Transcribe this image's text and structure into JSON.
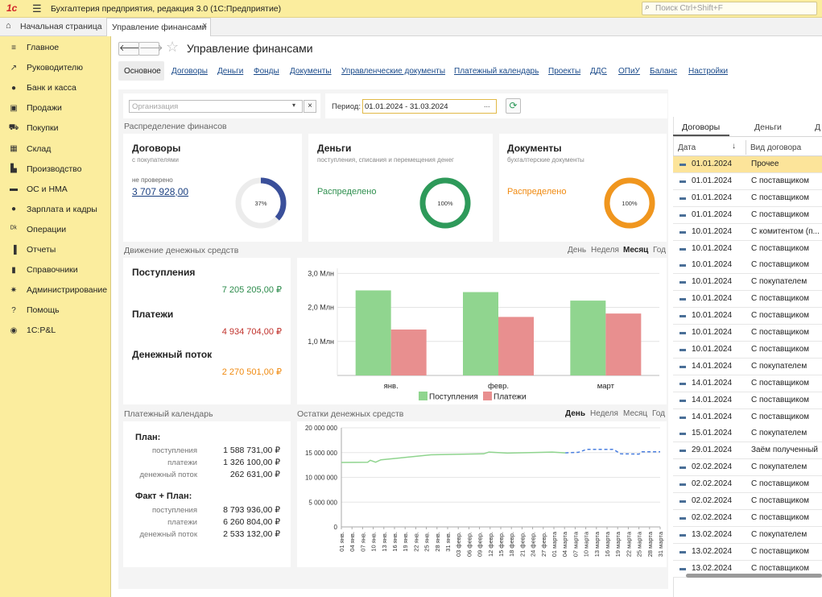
{
  "app": {
    "title": "Бухгалтерия предприятия, редакция 3.0  (1С:Предприятие)",
    "search_placeholder": "Поиск Ctrl+Shift+F"
  },
  "tabs": {
    "home": "Начальная страница",
    "active": "Управление финансами"
  },
  "sidebar": {
    "items": [
      {
        "label": "Главное",
        "icon": "menu-icon"
      },
      {
        "label": "Руководителю",
        "icon": "trend-icon"
      },
      {
        "label": "Банк и касса",
        "icon": "coin-icon"
      },
      {
        "label": "Продажи",
        "icon": "bag-icon"
      },
      {
        "label": "Покупки",
        "icon": "cart-icon"
      },
      {
        "label": "Склад",
        "icon": "warehouse-icon"
      },
      {
        "label": "Производство",
        "icon": "factory-icon"
      },
      {
        "label": "ОС и НМА",
        "icon": "truck-icon"
      },
      {
        "label": "Зарплата и кадры",
        "icon": "person-icon"
      },
      {
        "label": "Операции",
        "icon": "dt-kt-icon"
      },
      {
        "label": "Отчеты",
        "icon": "bar-report-icon"
      },
      {
        "label": "Справочники",
        "icon": "book-icon"
      },
      {
        "label": "Администрирование",
        "icon": "gear-icon"
      },
      {
        "label": "Помощь",
        "icon": "question-icon"
      },
      {
        "label": "1С:P&L",
        "icon": "pl-icon"
      }
    ]
  },
  "page": {
    "title": "Управление финансами"
  },
  "nav": {
    "items": [
      "Основное",
      "Договоры",
      "Деньги",
      "Фонды",
      "Документы",
      "Управленческие документы",
      "Платежный календарь",
      "Проекты",
      "ДДС",
      "ОПиУ",
      "Баланс",
      "Настройки"
    ]
  },
  "filter": {
    "org_placeholder": "Организация",
    "period_label": "Период:",
    "period_value": "01.01.2024 - 31.03.2024",
    "ellipsis": "...",
    "clear": "×"
  },
  "distribution": {
    "title": "Распределение финансов",
    "contracts": {
      "title": "Договоры",
      "subtitle": "с покупателями",
      "status": "не проверено",
      "amount": "3 707 928,00",
      "percent_label": "37%",
      "percent": 37,
      "color": "#3a4f9a"
    },
    "money": {
      "title": "Деньги",
      "subtitle": "поступления, списания и перемещения денег",
      "status": "Распределено",
      "percent_label": "100%",
      "percent": 100,
      "color": "#2e9a5a"
    },
    "docs": {
      "title": "Документы",
      "subtitle": "бухгалтерские документы",
      "status": "Распределено",
      "percent_label": "100%",
      "percent": 100,
      "color": "#f0961e"
    }
  },
  "cashflow": {
    "title": "Движение денежных средств",
    "periods": [
      "День",
      "Неделя",
      "Месяц",
      "Год"
    ],
    "receipts_label": "Поступления",
    "receipts_value": "7 205 205,00 ₽",
    "payments_label": "Платежи",
    "payments_value": "4 934 704,00 ₽",
    "flow_label": "Денежный поток",
    "flow_value": "2 270 501,00 ₽"
  },
  "calendar": {
    "title": "Платежный календарь",
    "plan": {
      "title": "План:",
      "rows": [
        [
          "поступления",
          "1 588 731,00 ₽"
        ],
        [
          "платежи",
          "1 326 100,00 ₽"
        ],
        [
          "денежный поток",
          "262 631,00 ₽"
        ]
      ]
    },
    "fact": {
      "title": "Факт + План:",
      "rows": [
        [
          "поступления",
          "8 793 936,00 ₽"
        ],
        [
          "платежи",
          "6 260 804,00 ₽"
        ],
        [
          "денежный поток",
          "2 533 132,00 ₽"
        ]
      ]
    }
  },
  "balances": {
    "title": "Остатки денежных средств",
    "periods": [
      "День",
      "Неделя",
      "Месяц",
      "Год"
    ]
  },
  "chart_data": [
    {
      "type": "bar",
      "categories": [
        "янв.",
        "февр.",
        "март"
      ],
      "series": [
        {
          "name": "Поступления",
          "values": [
            2.5,
            2.45,
            2.2
          ],
          "color": "#90d58f"
        },
        {
          "name": "Платежи",
          "values": [
            1.35,
            1.72,
            1.82
          ],
          "color": "#e88f8f"
        }
      ],
      "yticks": [
        "1,0 Млн",
        "2,0 Млн",
        "3,0 Млн"
      ],
      "ylim": [
        0,
        3.15
      ],
      "legend": "bottom"
    },
    {
      "type": "line",
      "yticks": [
        "0",
        "5 000 000",
        "10 000 000",
        "15 000 000",
        "20 000 000"
      ],
      "ylim": [
        0,
        20000000
      ],
      "xticks": [
        "01 янв.",
        "04 янв.",
        "07 янв.",
        "10 янв.",
        "13 янв.",
        "16 янв.",
        "19 янв.",
        "22 янв.",
        "25 янв.",
        "28 янв.",
        "31 янв.",
        "03 февр.",
        "06 февр.",
        "09 февр.",
        "12 февр.",
        "15 февр.",
        "18 февр.",
        "21 февр.",
        "24 февр.",
        "27 февр.",
        "01 марта",
        "04 марта",
        "07 марта",
        "10 марта",
        "13 марта",
        "16 марта",
        "19 марта",
        "22 марта",
        "25 марта",
        "28 марта",
        "31 марта"
      ],
      "series": [
        {
          "name": "Факт",
          "style": "solid",
          "color": "#8fd48e",
          "points": [
            [
              0,
              13000000
            ],
            [
              10,
              13050000
            ],
            [
              11,
              13450000
            ],
            [
              13,
              13050000
            ],
            [
              15,
              13550000
            ],
            [
              22,
              13900000
            ],
            [
              34,
              14550000
            ],
            [
              54,
              14750000
            ],
            [
              56,
              15100000
            ],
            [
              63,
              14900000
            ],
            [
              72,
              15000000
            ],
            [
              80,
              15100000
            ],
            [
              85,
              14950000
            ]
          ]
        },
        {
          "name": "План",
          "style": "dashed",
          "color": "#4a7fe0",
          "points": [
            [
              85,
              14950000
            ],
            [
              90,
              15050000
            ],
            [
              93,
              15650000
            ],
            [
              103,
              15650000
            ],
            [
              104,
              15400000
            ],
            [
              106,
              14750000
            ],
            [
              113,
              14700000
            ],
            [
              114,
              15150000
            ],
            [
              121,
              15150000
            ]
          ]
        }
      ],
      "xmax": 121
    }
  ],
  "right": {
    "tabs": [
      "Договоры",
      "Деньги",
      "Д"
    ],
    "cols": [
      "Дата",
      "Вид договора"
    ],
    "rows": [
      [
        "01.01.2024",
        "Прочее"
      ],
      [
        "01.01.2024",
        "С поставщиком"
      ],
      [
        "01.01.2024",
        "С поставщиком"
      ],
      [
        "01.01.2024",
        "С поставщиком"
      ],
      [
        "10.01.2024",
        "С комитентом (п..."
      ],
      [
        "10.01.2024",
        "С поставщиком"
      ],
      [
        "10.01.2024",
        "С поставщиком"
      ],
      [
        "10.01.2024",
        "С покупателем"
      ],
      [
        "10.01.2024",
        "С поставщиком"
      ],
      [
        "10.01.2024",
        "С поставщиком"
      ],
      [
        "10.01.2024",
        "С поставщиком"
      ],
      [
        "10.01.2024",
        "С поставщиком"
      ],
      [
        "14.01.2024",
        "С покупателем"
      ],
      [
        "14.01.2024",
        "С поставщиком"
      ],
      [
        "14.01.2024",
        "С поставщиком"
      ],
      [
        "14.01.2024",
        "С поставщиком"
      ],
      [
        "15.01.2024",
        "С покупателем"
      ],
      [
        "29.01.2024",
        "Заём полученный"
      ],
      [
        "02.02.2024",
        "С покупателем"
      ],
      [
        "02.02.2024",
        "С поставщиком"
      ],
      [
        "02.02.2024",
        "С поставщиком"
      ],
      [
        "02.02.2024",
        "С поставщиком"
      ],
      [
        "13.02.2024",
        "С покупателем"
      ],
      [
        "13.02.2024",
        "С поставщиком"
      ],
      [
        "13.02.2024",
        "С поставщиком"
      ]
    ]
  }
}
